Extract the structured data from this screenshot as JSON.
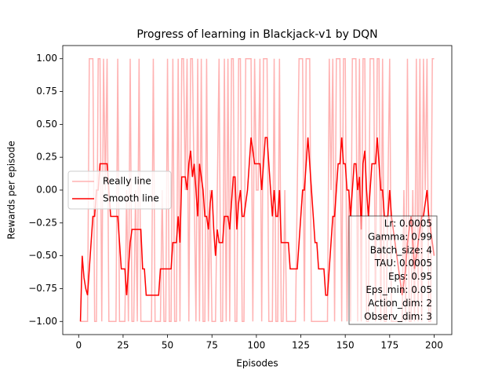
{
  "chart_data": {
    "type": "line",
    "title": "Progress of learning in Blackjack-v1 by DQN",
    "xlabel": "Episodes",
    "ylabel": "Rewards per episode",
    "xlim": [
      -8.95,
      209.95
    ],
    "ylim": [
      -1.1,
      1.1
    ],
    "xticks": [
      0,
      25,
      50,
      75,
      100,
      125,
      150,
      175,
      200
    ],
    "yticks": [
      {
        "value": -1,
        "label": "−1.00"
      },
      {
        "value": -0.75,
        "label": "−0.75"
      },
      {
        "value": -0.5,
        "label": "−0.50"
      },
      {
        "value": -0.25,
        "label": "−0.25"
      },
      {
        "value": 0,
        "label": "0.00"
      },
      {
        "value": 0.25,
        "label": "0.25"
      },
      {
        "value": 0.5,
        "label": "0.50"
      },
      {
        "value": 0.75,
        "label": "0.75"
      },
      {
        "value": 1,
        "label": "1.00"
      }
    ],
    "legend": "center left",
    "x": [
      1,
      2,
      3,
      4,
      5,
      6,
      7,
      8,
      9,
      10,
      11,
      12,
      13,
      14,
      15,
      16,
      17,
      18,
      19,
      20,
      21,
      22,
      23,
      24,
      25,
      26,
      27,
      28,
      29,
      30,
      31,
      32,
      33,
      34,
      35,
      36,
      37,
      38,
      39,
      40,
      41,
      42,
      43,
      44,
      45,
      46,
      47,
      48,
      49,
      50,
      51,
      52,
      53,
      54,
      55,
      56,
      57,
      58,
      59,
      60,
      61,
      62,
      63,
      64,
      65,
      66,
      67,
      68,
      69,
      70,
      71,
      72,
      73,
      74,
      75,
      76,
      77,
      78,
      79,
      80,
      81,
      82,
      83,
      84,
      85,
      86,
      87,
      88,
      89,
      90,
      91,
      92,
      93,
      94,
      95,
      96,
      97,
      98,
      99,
      100,
      101,
      102,
      103,
      104,
      105,
      106,
      107,
      108,
      109,
      110,
      111,
      112,
      113,
      114,
      115,
      116,
      117,
      118,
      119,
      120,
      121,
      122,
      123,
      124,
      125,
      126,
      127,
      128,
      129,
      130,
      131,
      132,
      133,
      134,
      135,
      136,
      137,
      138,
      139,
      140,
      141,
      142,
      143,
      144,
      145,
      146,
      147,
      148,
      149,
      150,
      151,
      152,
      153,
      154,
      155,
      156,
      157,
      158,
      159,
      160,
      161,
      162,
      163,
      164,
      165,
      166,
      167,
      168,
      169,
      170,
      171,
      172,
      173,
      174,
      175,
      176,
      177,
      178,
      179,
      180,
      181,
      182,
      183,
      184,
      185,
      186,
      187,
      188,
      189,
      190,
      191,
      192,
      193,
      194,
      195,
      196,
      197,
      198,
      199,
      200
    ],
    "series": [
      {
        "name": "Really line",
        "color": "#ffb2b2",
        "values": [
          -1,
          -1,
          -1,
          -1,
          -1,
          1,
          1,
          1,
          -1,
          -1,
          1,
          1,
          -1,
          1,
          0,
          1,
          -1,
          -1,
          -1,
          -1,
          -1,
          1,
          -1,
          -1,
          -1,
          -1,
          0,
          -1,
          1,
          -1,
          -1,
          0,
          -1,
          1,
          -1,
          -1,
          -1,
          -1,
          -1,
          -1,
          -1,
          1,
          -1,
          -1,
          -1,
          -1,
          0,
          -1,
          -1,
          1,
          -1,
          -1,
          1,
          -1,
          -1,
          1,
          -1,
          1,
          1,
          0,
          1,
          -1,
          1,
          1,
          0,
          -1,
          1,
          -1,
          1,
          -1,
          -1,
          1,
          -1,
          0,
          -1,
          -1,
          -1,
          0,
          1,
          -1,
          -1,
          1,
          -1,
          1,
          -1,
          1,
          1,
          -1,
          -1,
          1,
          1,
          -1,
          -1,
          1,
          1,
          1,
          1,
          -1,
          1,
          0,
          0,
          1,
          -1,
          1,
          1,
          1,
          -1,
          -1,
          -1,
          1,
          -1,
          -1,
          1,
          -1,
          -1,
          0,
          -1,
          -1,
          -1,
          -1,
          -1,
          -1,
          0,
          1,
          1,
          1,
          -1,
          1,
          1,
          1,
          -1,
          -1,
          -1,
          -1,
          -1,
          -1,
          -1,
          -1,
          -1,
          -1,
          1,
          0,
          1,
          -1,
          1,
          1,
          1,
          -1,
          1,
          1,
          -1,
          0,
          -1,
          1,
          1,
          1,
          -1,
          1,
          -1,
          1,
          1,
          -1,
          -1,
          1,
          1,
          1,
          -1,
          1,
          1,
          -1,
          1,
          -1,
          -1,
          0,
          1,
          -1,
          -1,
          -1,
          -1,
          -1,
          -1,
          -1,
          0,
          -1,
          1,
          -1,
          -1,
          0,
          -1,
          1,
          -1,
          1,
          -1,
          1,
          0,
          1,
          -1,
          -1,
          1,
          1
        ]
      },
      {
        "name": "Smooth line",
        "color": "#ff0000",
        "values": [
          -1,
          -0.5,
          -0.667,
          -0.75,
          -0.8,
          -0.6,
          -0.4,
          -0.2,
          -0.2,
          0,
          0,
          0.2,
          0.2,
          0.2,
          0.2,
          0.2,
          0,
          -0.2,
          -0.2,
          -0.2,
          -0.2,
          -0.2,
          -0.4,
          -0.6,
          -0.6,
          -0.6,
          -0.8,
          -0.6,
          -0.4,
          -0.3,
          -0.3,
          -0.3,
          -0.3,
          -0.3,
          -0.3,
          -0.6,
          -0.6,
          -0.8,
          -0.8,
          -0.8,
          -0.8,
          -0.8,
          -0.8,
          -0.8,
          -0.8,
          -0.6,
          -0.6,
          -0.6,
          -0.6,
          -0.6,
          -0.6,
          -0.6,
          -0.4,
          -0.4,
          -0.4,
          -0.2,
          -0.4,
          0.1,
          0.1,
          0.1,
          0,
          0.2,
          0.3,
          0.1,
          0.2,
          0,
          -0.2,
          0.2,
          0.1,
          0,
          -0.2,
          -0.2,
          -0.3,
          -0.1,
          0,
          -0.3,
          -0.5,
          -0.3,
          -0.4,
          -0.4,
          -0.4,
          -0.2,
          -0.2,
          -0.2,
          -0.3,
          -0.1,
          0.1,
          0.1,
          -0.3,
          -0.1,
          0,
          -0.2,
          -0.2,
          -0.1,
          0,
          0.2,
          0.4,
          0.3,
          0.2,
          0.2,
          0.2,
          0.2,
          0,
          0.2,
          0.4,
          0.4,
          0.2,
          0,
          -0.2,
          0,
          -0.2,
          -0.2,
          0,
          -0.4,
          -0.4,
          -0.4,
          -0.4,
          -0.4,
          -0.6,
          -0.6,
          -0.6,
          -0.6,
          -0.6,
          -0.4,
          -0.2,
          0,
          0,
          0.2,
          0.4,
          0.2,
          0,
          -0.2,
          -0.4,
          -0.4,
          -0.6,
          -0.6,
          -0.6,
          -0.6,
          -0.8,
          -0.8,
          -0.6,
          -0.4,
          -0.2,
          -0.2,
          0,
          0.2,
          0.2,
          0.4,
          0.2,
          0.2,
          0,
          0,
          -0.2,
          0,
          0.2,
          0.2,
          0,
          0.1,
          -0.3,
          0.2,
          0.3,
          0,
          -0.2,
          0,
          0.2,
          0.2,
          0.2,
          0.4,
          0.2,
          0,
          0,
          -0.2,
          -0.2,
          -0.2,
          0,
          -0.2,
          -0.3,
          -0.4,
          -0.5,
          -0.6,
          -0.7,
          -0.8,
          -0.7,
          -0.6,
          -0.4,
          -0.3,
          -0.2,
          -0.4,
          -0.6,
          -0.5,
          -0.4,
          -0.3,
          -0.2,
          -0.2,
          -0.1,
          0,
          -0.2,
          -0.3,
          -0.4,
          -0.5
        ]
      }
    ],
    "annotation": [
      "Lr: 0.0005",
      "Gamma: 0.99",
      "Batch_size: 4",
      "TAU: 0.0005",
      "Eps: 0.95",
      "Eps_min: 0.05",
      "Action_dim: 2",
      "Observ_dim: 3"
    ]
  }
}
